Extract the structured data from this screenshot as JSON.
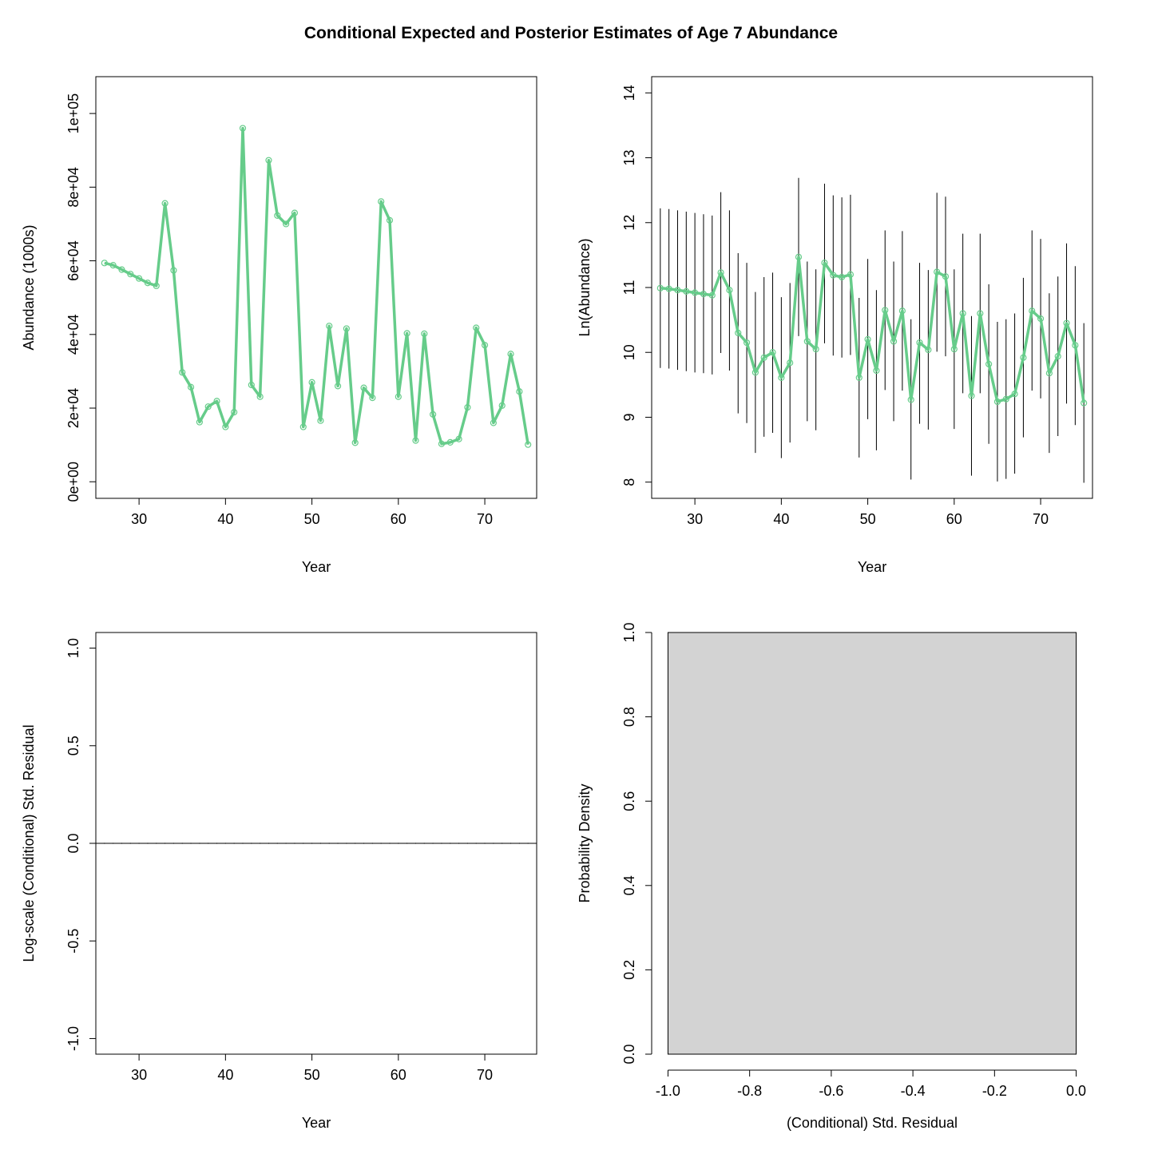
{
  "figure": {
    "title": "Conditional Expected and Posterior Estimates of Age 7 Abundance"
  },
  "colors": {
    "series": "#66cc8a",
    "axis": "#000000",
    "bar_fill": "#d3d3d3"
  },
  "chart_data": [
    {
      "id": "abundance",
      "type": "line",
      "xlabel": "Year",
      "ylabel": "Abundance (1000s)",
      "xlim": [
        25,
        76
      ],
      "ylim": [
        -4500,
        110000
      ],
      "xticks": [
        30,
        40,
        50,
        60,
        70
      ],
      "yticks": [
        0,
        20000,
        40000,
        60000,
        80000,
        100000
      ],
      "ytick_labels": [
        "0e+00",
        "2e+04",
        "4e+04",
        "6e+04",
        "8e+04",
        "1e+05"
      ],
      "marker": "open-circle",
      "x": [
        26,
        27,
        28,
        29,
        30,
        31,
        32,
        33,
        34,
        35,
        36,
        37,
        38,
        39,
        40,
        41,
        42,
        43,
        44,
        45,
        46,
        47,
        48,
        49,
        50,
        51,
        52,
        53,
        54,
        55,
        56,
        57,
        58,
        59,
        60,
        61,
        62,
        63,
        64,
        65,
        66,
        67,
        68,
        69,
        70,
        71,
        72,
        73,
        74,
        75
      ],
      "values": [
        59400,
        58800,
        57600,
        56400,
        55200,
        54000,
        53200,
        75600,
        57400,
        29700,
        25700,
        16200,
        20400,
        21900,
        14900,
        18900,
        96000,
        26300,
        23100,
        87300,
        72300,
        70000,
        73000,
        14900,
        27000,
        16600,
        42300,
        26000,
        41600,
        10600,
        25500,
        22800,
        76100,
        71000,
        23100,
        40300,
        11200,
        40200,
        18300,
        10300,
        10700,
        11600,
        20200,
        41800,
        37100,
        16000,
        20700,
        34700,
        24500,
        10100
      ]
    },
    {
      "id": "log-abundance",
      "type": "line",
      "xlabel": "Year",
      "ylabel": "Ln(Abundance)",
      "xlim": [
        25,
        76
      ],
      "ylim": [
        7.75,
        14.25
      ],
      "xticks": [
        30,
        40,
        50,
        60,
        70
      ],
      "yticks": [
        8,
        9,
        10,
        11,
        12,
        13,
        14
      ],
      "ytick_labels": [
        "8",
        "9",
        "10",
        "11",
        "12",
        "13",
        "14"
      ],
      "marker": "open-circle",
      "x": [
        26,
        27,
        28,
        29,
        30,
        31,
        32,
        33,
        34,
        35,
        36,
        37,
        38,
        39,
        40,
        41,
        42,
        43,
        44,
        45,
        46,
        47,
        48,
        49,
        50,
        51,
        52,
        53,
        54,
        55,
        56,
        57,
        58,
        59,
        60,
        61,
        62,
        63,
        64,
        65,
        66,
        67,
        68,
        69,
        70,
        71,
        72,
        73,
        74,
        75
      ],
      "values": [
        10.99,
        10.98,
        10.96,
        10.94,
        10.92,
        10.9,
        10.88,
        11.23,
        10.96,
        10.3,
        10.15,
        9.69,
        9.92,
        10.0,
        9.61,
        9.84,
        11.47,
        10.17,
        10.05,
        11.38,
        11.19,
        11.16,
        11.2,
        9.61,
        10.2,
        9.72,
        10.65,
        10.17,
        10.64,
        9.27,
        10.15,
        10.04,
        11.24,
        11.17,
        10.05,
        10.6,
        9.33,
        10.6,
        9.82,
        9.24,
        9.28,
        9.36,
        9.92,
        10.64,
        10.52,
        9.68,
        9.94,
        10.45,
        10.11,
        9.22
      ],
      "interval_low": [
        9.76,
        9.75,
        9.73,
        9.71,
        9.69,
        9.68,
        9.66,
        9.99,
        9.72,
        9.06,
        8.91,
        8.45,
        8.7,
        8.76,
        8.37,
        8.61,
        10.25,
        8.94,
        8.8,
        10.14,
        9.95,
        9.92,
        9.96,
        8.38,
        8.97,
        8.49,
        9.42,
        8.94,
        9.41,
        8.04,
        8.9,
        8.81,
        10.01,
        9.94,
        8.82,
        9.37,
        8.1,
        9.37,
        8.59,
        8.01,
        8.05,
        8.13,
        8.69,
        9.41,
        9.29,
        8.45,
        8.71,
        9.21,
        8.88,
        7.99
      ],
      "interval_high": [
        12.22,
        12.21,
        12.19,
        12.17,
        12.15,
        12.13,
        12.11,
        12.47,
        12.19,
        11.53,
        11.38,
        10.93,
        11.16,
        11.23,
        10.85,
        11.07,
        12.69,
        11.4,
        11.28,
        12.6,
        12.42,
        12.39,
        12.43,
        10.84,
        11.44,
        10.96,
        11.88,
        11.4,
        11.87,
        10.51,
        11.38,
        11.27,
        12.46,
        12.4,
        11.28,
        11.83,
        10.56,
        11.83,
        11.05,
        10.47,
        10.51,
        10.6,
        11.15,
        11.88,
        11.75,
        10.91,
        11.17,
        11.68,
        11.33,
        10.45
      ]
    },
    {
      "id": "std-residual",
      "type": "line",
      "xlabel": "Year",
      "ylabel": "Log-scale (Conditional) Std. Residual",
      "xlim": [
        25,
        76
      ],
      "ylim": [
        -1.08,
        1.08
      ],
      "xticks": [
        30,
        40,
        50,
        60,
        70
      ],
      "yticks": [
        -1.0,
        -0.5,
        0.0,
        0.5,
        1.0
      ],
      "ytick_labels": [
        "-1.0",
        "-0.5",
        "0.0",
        "0.5",
        "1.0"
      ],
      "x": [
        26,
        27,
        28,
        29,
        30,
        31,
        32,
        33,
        34,
        35,
        36,
        37,
        38,
        39,
        40,
        41,
        42,
        43,
        44,
        45,
        46,
        47,
        48,
        49,
        50,
        51,
        52,
        53,
        54,
        55,
        56,
        57,
        58,
        59,
        60,
        61,
        62,
        63,
        64,
        65,
        66,
        67,
        68,
        69,
        70,
        71,
        72,
        73,
        74,
        75
      ],
      "values": [
        0,
        0,
        0,
        0,
        0,
        0,
        0,
        0,
        0,
        0,
        0,
        0,
        0,
        0,
        0,
        0,
        0,
        0,
        0,
        0,
        0,
        0,
        0,
        0,
        0,
        0,
        0,
        0,
        0,
        0,
        0,
        0,
        0,
        0,
        0,
        0,
        0,
        0,
        0,
        0,
        0,
        0,
        0,
        0,
        0,
        0,
        0,
        0,
        0,
        0
      ],
      "reference_line": 0
    },
    {
      "id": "residual-histogram",
      "type": "bar",
      "xlabel": "(Conditional) Std. Residual",
      "ylabel": "Probability Density",
      "xlim": [
        -1.04,
        0.04
      ],
      "ylim": [
        0,
        1.0
      ],
      "xticks": [
        -1.0,
        -0.8,
        -0.6,
        -0.4,
        -0.2,
        0.0
      ],
      "xtick_labels": [
        "-1.0",
        "-0.8",
        "-0.6",
        "-0.4",
        "-0.2",
        "0.0"
      ],
      "yticks": [
        0.0,
        0.2,
        0.4,
        0.6,
        0.8,
        1.0
      ],
      "ytick_labels": [
        "0.0",
        "0.2",
        "0.4",
        "0.6",
        "0.8",
        "1.0"
      ],
      "bins": [
        {
          "from": -1.0,
          "to": 0.0,
          "density": 1.0
        }
      ]
    }
  ]
}
